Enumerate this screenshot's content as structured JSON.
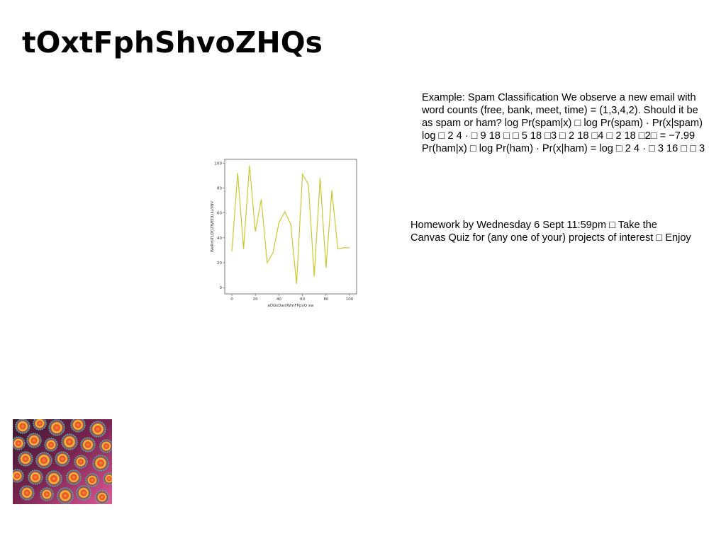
{
  "page": {
    "title": "tOxtFphShvoZHQs"
  },
  "example_text": "Example: Spam Classification We observe a new email with\nword counts (free, bank, meet, time) = (1,3,4,2). Should it be\nas spam or ham? log Pr(spam|x) □ log Pr(spam) · Pr(x|spam)\nlog □ 2 4 · □ 9 18 □ □ 5 18 □3 □ 2 18 □4 □ 2 18 □2□ = −7.99\nPr(ham|x) □ log Pr(ham) · Pr(x|ham) = log □ 2 4 · □ 3 16 □ □ 3",
  "homework_text": "Homework by Wednesday 6 Sept 11:59pm □ Take the\nCanvas Quiz for (any one of your) projects of interest □ Enjoy",
  "chart_data": {
    "type": "line",
    "xlabel": "eDGsDaiiIWmFPpvQ xw",
    "ylabel": "WeRrbTLDOZWEDLiLuYNV",
    "xlim": [
      -6,
      106
    ],
    "ylim": [
      -5,
      103
    ],
    "xticks": [
      0,
      20,
      40,
      60,
      80,
      100
    ],
    "yticks": [
      0,
      20,
      40,
      60,
      80,
      100
    ],
    "grid": false,
    "color": "#c8c832",
    "series": [
      {
        "x": [
          0,
          5,
          10,
          15,
          20,
          25,
          30,
          35,
          40,
          45,
          50,
          55,
          60,
          65,
          70,
          75,
          80,
          85,
          90,
          95,
          100
        ],
        "y": [
          29,
          92,
          31,
          98,
          45,
          71,
          20,
          28,
          52,
          61,
          51,
          3,
          91,
          83,
          9,
          88,
          16,
          78,
          31,
          32,
          32
        ]
      }
    ]
  },
  "photo": {
    "description_icon": "coral-polyps-image"
  }
}
